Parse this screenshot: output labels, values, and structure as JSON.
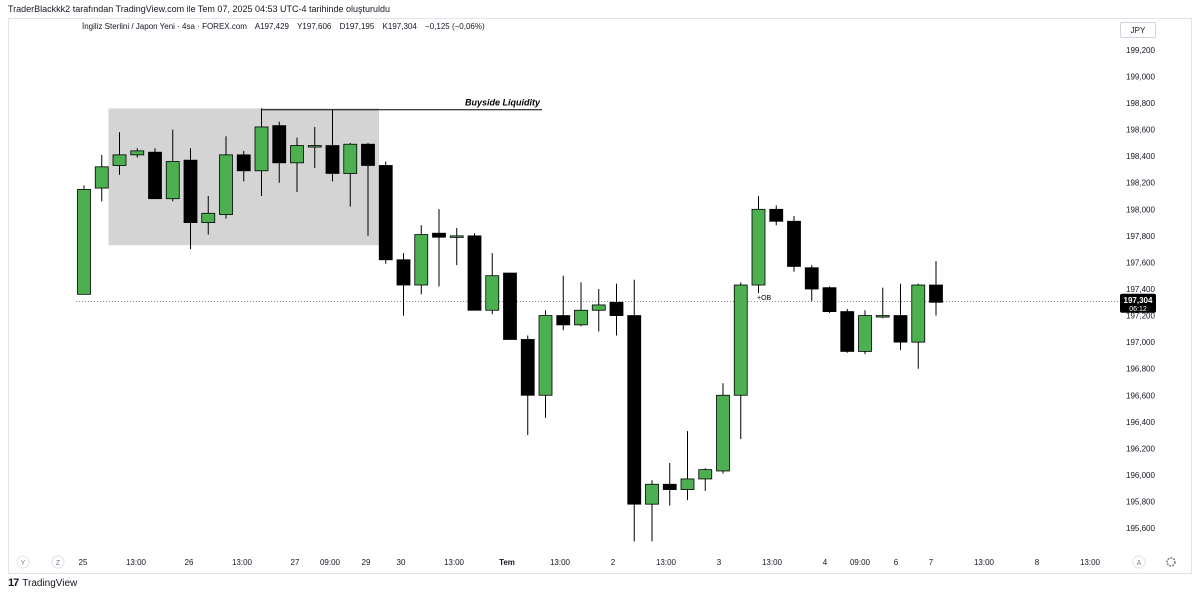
{
  "header": {
    "credit": "TraderBlackkk2 tarafından TradingView.com ile Tem 07, 2025 04:53 UTC-4 tarihinde oluşturuldu",
    "symbol": "İngiliz Sterlini / Japon Yeni · 4sa · FOREX.com",
    "open": "A197,429",
    "high": "Y197,606",
    "low": "D197,195",
    "close": "K197,304",
    "change": "−0,125 (−0,06%)"
  },
  "currency": "JPY",
  "footer": {
    "brand": "TradingView",
    "logo": "17"
  },
  "timeframe_buttons": [
    "Y",
    "Z"
  ],
  "scale_buttons": [
    "A"
  ],
  "settings_icon": "gear-icon",
  "colors": {
    "up": "#4caf50",
    "down": "#000000",
    "zone": "#d4d4d4",
    "price_tag": "#000000"
  },
  "chart_data": {
    "type": "candlestick",
    "ylim": [
      195.45,
      199.35
    ],
    "y_ticks": [
      199.2,
      199.0,
      198.8,
      198.6,
      198.4,
      198.2,
      198.0,
      197.8,
      197.6,
      197.4,
      197.2,
      197.0,
      196.8,
      196.6,
      196.4,
      196.2,
      196.0,
      195.8,
      195.6
    ],
    "y_tick_labels": [
      "199,200",
      "199,000",
      "198,800",
      "198,600",
      "198,400",
      "198,200",
      "198,000",
      "197,800",
      "197,600",
      "197,400",
      "197,200",
      "197,000",
      "196,800",
      "196,600",
      "196,400",
      "196,200",
      "196,000",
      "195,800",
      "195,600"
    ],
    "x_labels": [
      "25",
      "13:00",
      "26",
      "13:00",
      "27",
      "09:00",
      "29",
      "30",
      "13:00",
      "Tem",
      "13:00",
      "2",
      "13:00",
      "3",
      "13:00",
      "4",
      "09:00",
      "6",
      "7",
      "13:00",
      "8",
      "13:00"
    ],
    "x_label_bold": [
      "Tem"
    ],
    "candles": [
      {
        "o": 197.36,
        "h": 198.18,
        "l": 197.36,
        "c": 198.15
      },
      {
        "o": 198.16,
        "h": 198.41,
        "l": 198.06,
        "c": 198.32
      },
      {
        "o": 198.33,
        "h": 198.58,
        "l": 198.26,
        "c": 198.41
      },
      {
        "o": 198.41,
        "h": 198.46,
        "l": 198.39,
        "c": 198.44
      },
      {
        "o": 198.43,
        "h": 198.46,
        "l": 198.08,
        "c": 198.08
      },
      {
        "o": 198.08,
        "h": 198.6,
        "l": 198.06,
        "c": 198.36
      },
      {
        "o": 198.37,
        "h": 198.46,
        "l": 197.7,
        "c": 197.9
      },
      {
        "o": 197.9,
        "h": 198.1,
        "l": 197.81,
        "c": 197.97
      },
      {
        "o": 197.96,
        "h": 198.55,
        "l": 197.93,
        "c": 198.41
      },
      {
        "o": 198.41,
        "h": 198.44,
        "l": 198.21,
        "c": 198.29
      },
      {
        "o": 198.29,
        "h": 198.76,
        "l": 198.1,
        "c": 198.62
      },
      {
        "o": 198.63,
        "h": 198.66,
        "l": 198.2,
        "c": 198.35
      },
      {
        "o": 198.35,
        "h": 198.54,
        "l": 198.13,
        "c": 198.48
      },
      {
        "o": 198.48,
        "h": 198.62,
        "l": 198.31,
        "c": 198.48
      },
      {
        "o": 198.48,
        "h": 198.75,
        "l": 198.21,
        "c": 198.27
      },
      {
        "o": 198.27,
        "h": 198.5,
        "l": 198.02,
        "c": 198.49
      },
      {
        "o": 198.49,
        "h": 198.5,
        "l": 197.8,
        "c": 198.33
      },
      {
        "o": 198.33,
        "h": 198.36,
        "l": 197.59,
        "c": 197.62
      },
      {
        "o": 197.62,
        "h": 197.67,
        "l": 197.2,
        "c": 197.43
      },
      {
        "o": 197.43,
        "h": 197.88,
        "l": 197.36,
        "c": 197.81
      },
      {
        "o": 197.82,
        "h": 198.0,
        "l": 197.42,
        "c": 197.79
      },
      {
        "o": 197.8,
        "h": 197.86,
        "l": 197.58,
        "c": 197.8
      },
      {
        "o": 197.8,
        "h": 197.82,
        "l": 197.24,
        "c": 197.24
      },
      {
        "o": 197.24,
        "h": 197.67,
        "l": 197.21,
        "c": 197.5
      },
      {
        "o": 197.52,
        "h": 197.52,
        "l": 197.02,
        "c": 197.02
      },
      {
        "o": 197.02,
        "h": 197.05,
        "l": 196.3,
        "c": 196.6
      },
      {
        "o": 196.6,
        "h": 197.24,
        "l": 196.43,
        "c": 197.2
      },
      {
        "o": 197.2,
        "h": 197.5,
        "l": 197.09,
        "c": 197.13
      },
      {
        "o": 197.13,
        "h": 197.45,
        "l": 197.12,
        "c": 197.24
      },
      {
        "o": 197.24,
        "h": 197.4,
        "l": 197.08,
        "c": 197.28
      },
      {
        "o": 197.3,
        "h": 197.44,
        "l": 197.05,
        "c": 197.2
      },
      {
        "o": 197.2,
        "h": 197.47,
        "l": 195.5,
        "c": 195.78
      },
      {
        "o": 195.78,
        "h": 195.96,
        "l": 195.5,
        "c": 195.93
      },
      {
        "o": 195.93,
        "h": 196.09,
        "l": 195.77,
        "c": 195.89
      },
      {
        "o": 195.89,
        "h": 196.33,
        "l": 195.81,
        "c": 195.97
      },
      {
        "o": 195.97,
        "h": 196.05,
        "l": 195.88,
        "c": 196.04
      },
      {
        "o": 196.03,
        "h": 196.69,
        "l": 196.01,
        "c": 196.6
      },
      {
        "o": 196.6,
        "h": 197.45,
        "l": 196.27,
        "c": 197.43
      },
      {
        "o": 197.43,
        "h": 198.1,
        "l": 197.37,
        "c": 198.0
      },
      {
        "o": 198.0,
        "h": 198.03,
        "l": 197.88,
        "c": 197.91
      },
      {
        "o": 197.91,
        "h": 197.95,
        "l": 197.53,
        "c": 197.57
      },
      {
        "o": 197.56,
        "h": 197.58,
        "l": 197.31,
        "c": 197.4
      },
      {
        "o": 197.41,
        "h": 197.42,
        "l": 197.22,
        "c": 197.23
      },
      {
        "o": 197.23,
        "h": 197.25,
        "l": 196.92,
        "c": 196.93
      },
      {
        "o": 196.93,
        "h": 197.24,
        "l": 196.91,
        "c": 197.2
      },
      {
        "o": 197.2,
        "h": 197.41,
        "l": 197.18,
        "c": 197.2
      },
      {
        "o": 197.2,
        "h": 197.44,
        "l": 196.94,
        "c": 197.0
      },
      {
        "o": 197.0,
        "h": 197.44,
        "l": 196.8,
        "c": 197.43
      },
      {
        "o": 197.43,
        "h": 197.61,
        "l": 197.2,
        "c": 197.3
      }
    ],
    "current_price": {
      "value": 197.304,
      "label": "197,304",
      "countdown": "06:12"
    },
    "annotations": [
      {
        "text": "Buyside Liquidity",
        "level": 198.75
      },
      {
        "text": "+OB",
        "level": 197.34
      }
    ],
    "zone": {
      "top": 198.76,
      "bottom": 197.73,
      "from_index": 2,
      "to_index": 16
    }
  }
}
